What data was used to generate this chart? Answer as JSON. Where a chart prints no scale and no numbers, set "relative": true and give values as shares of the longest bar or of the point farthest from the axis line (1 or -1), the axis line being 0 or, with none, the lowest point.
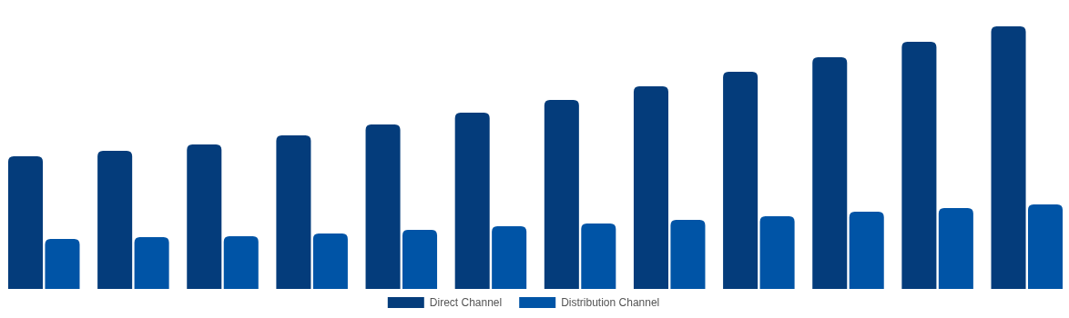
{
  "chart_data": {
    "type": "bar",
    "relative": true,
    "legend": "bottom",
    "categories": [
      null,
      null,
      null,
      null,
      null,
      null,
      null,
      null,
      null,
      null,
      null,
      null
    ],
    "series": [
      {
        "name": "Direct Channel",
        "color": "#043c7b",
        "values": [
          0.505,
          0.526,
          0.55,
          0.585,
          0.626,
          0.671,
          0.72,
          0.772,
          0.827,
          0.882,
          0.941,
          1
        ]
      },
      {
        "name": "Distribution Channel",
        "color": "#0054a6",
        "values": [
          0.19,
          0.197,
          0.201,
          0.211,
          0.225,
          0.239,
          0.249,
          0.263,
          0.277,
          0.294,
          0.308,
          0.322
        ]
      }
    ]
  }
}
